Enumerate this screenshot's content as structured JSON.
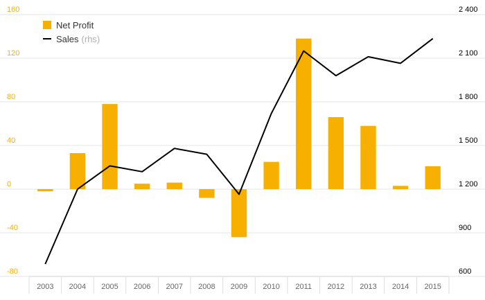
{
  "chart_data": {
    "type": "bar",
    "categories": [
      "2003",
      "2004",
      "2005",
      "2006",
      "2007",
      "2008",
      "2009",
      "2010",
      "2011",
      "2012",
      "2013",
      "2014",
      "2015"
    ],
    "series": [
      {
        "name": "Net Profit",
        "type": "bar",
        "axis": "left",
        "color": "#f7b000",
        "values": [
          -2,
          33,
          78,
          5,
          6,
          -8,
          -44,
          25,
          138,
          66,
          58,
          3,
          21
        ]
      },
      {
        "name": "Sales",
        "type": "line",
        "axis": "right",
        "color": "#000000",
        "values": [
          685,
          1200,
          1360,
          1320,
          1480,
          1440,
          1165,
          1720,
          2150,
          1980,
          2110,
          2065,
          2235
        ]
      }
    ],
    "y_left": {
      "min": -80,
      "max": 160,
      "ticks": [
        -80,
        -40,
        0,
        40,
        80,
        120,
        160
      ],
      "tick_labels": [
        "-80",
        "-40",
        "0",
        "40",
        "80",
        "120",
        "160"
      ],
      "color": "#f7b000"
    },
    "y_right": {
      "min": 600,
      "max": 2400,
      "ticks": [
        600,
        900,
        1200,
        1500,
        1800,
        2100,
        2400
      ],
      "tick_labels": [
        "600",
        "900",
        "1 200",
        "1 500",
        "1 800",
        "2 100",
        "2 400"
      ],
      "color": "#000000"
    },
    "grid": true
  },
  "legend": {
    "net_profit": "Net Profit",
    "sales": "Sales",
    "sales_note": "(rhs)"
  },
  "colors": {
    "bar": "#f7b000",
    "line": "#000000",
    "grid": "#e6e6e6",
    "axis_text": "#666666"
  }
}
